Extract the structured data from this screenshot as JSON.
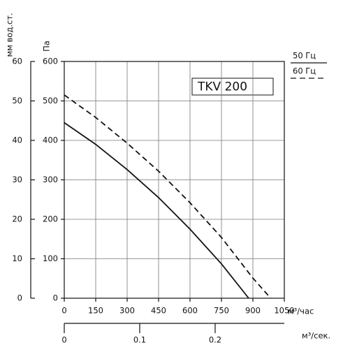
{
  "chart_data": {
    "type": "line",
    "title": "TKV 200",
    "y_label": "Па",
    "y2_label": "мм вод.ст.",
    "x_label": "м³/час",
    "x2_label": "м³/сек.",
    "xlim": [
      0,
      1050
    ],
    "xticks": [
      0,
      150,
      300,
      450,
      600,
      750,
      900,
      1050
    ],
    "ylim": [
      0,
      600
    ],
    "yticks": [
      0,
      100,
      200,
      300,
      400,
      500,
      600
    ],
    "y2lim": [
      0,
      60
    ],
    "y2ticks": [
      0,
      10,
      20,
      30,
      40,
      50,
      60
    ],
    "x2lim": [
      0,
      0.2917
    ],
    "x2ticks": [
      0,
      0.1,
      0.2
    ],
    "grid": true,
    "legend": "top-right",
    "series": [
      {
        "name": "50 Гц",
        "color": "#111111",
        "dash": false,
        "x": [
          0,
          150,
          300,
          450,
          600,
          750,
          880
        ],
        "values": [
          445,
          390,
          326,
          255,
          175,
          87,
          0
        ]
      },
      {
        "name": "60 Гц",
        "color": "#111111",
        "dash": true,
        "x": [
          0,
          150,
          300,
          450,
          600,
          750,
          900,
          985
        ],
        "values": [
          515,
          458,
          393,
          322,
          242,
          154,
          51,
          0
        ]
      }
    ]
  }
}
